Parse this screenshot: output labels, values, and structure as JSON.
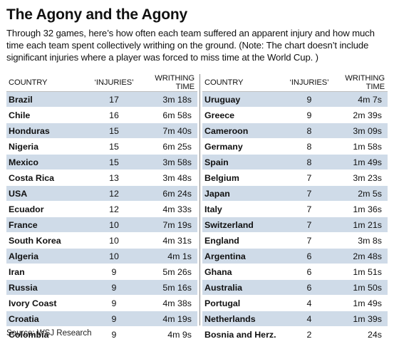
{
  "title": "The Agony and the Agony",
  "subtitle": "Through 32 games, here’s how often each team suffered an apparent injury and how much time each team spent collectively writhing on the ground. (Note: The chart doesn’t include significant injuries where a player was forced to miss time at the World Cup. )",
  "source": "Source: WSJ Research",
  "colors": {
    "shade": "#cfdbe8",
    "text": "#111111"
  },
  "chart_data": {
    "type": "table",
    "title": "The Agony and the Agony",
    "columns": [
      "COUNTRY",
      "‘INJURIES’",
      "WRITHING TIME"
    ],
    "rows": [
      {
        "country": "Brazil",
        "injuries": 17,
        "time": "3m 18s"
      },
      {
        "country": "Chile",
        "injuries": 16,
        "time": "6m 58s"
      },
      {
        "country": "Honduras",
        "injuries": 15,
        "time": "7m 40s"
      },
      {
        "country": "Nigeria",
        "injuries": 15,
        "time": "6m 25s"
      },
      {
        "country": "Mexico",
        "injuries": 15,
        "time": "3m 58s"
      },
      {
        "country": "Costa Rica",
        "injuries": 13,
        "time": "3m 48s"
      },
      {
        "country": "USA",
        "injuries": 12,
        "time": "6m 24s"
      },
      {
        "country": "Ecuador",
        "injuries": 12,
        "time": "4m 33s"
      },
      {
        "country": "France",
        "injuries": 10,
        "time": "7m 19s"
      },
      {
        "country": "South Korea",
        "injuries": 10,
        "time": "4m 31s"
      },
      {
        "country": "Algeria",
        "injuries": 10,
        "time": "4m 1s"
      },
      {
        "country": "Iran",
        "injuries": 9,
        "time": "5m 26s"
      },
      {
        "country": "Russia",
        "injuries": 9,
        "time": "5m 16s"
      },
      {
        "country": "Ivory Coast",
        "injuries": 9,
        "time": "4m 38s"
      },
      {
        "country": "Croatia",
        "injuries": 9,
        "time": "4m 19s"
      },
      {
        "country": "Colombia",
        "injuries": 9,
        "time": "4m 9s"
      },
      {
        "country": "Uruguay",
        "injuries": 9,
        "time": "4m 7s"
      },
      {
        "country": "Greece",
        "injuries": 9,
        "time": "2m 39s"
      },
      {
        "country": "Cameroon",
        "injuries": 8,
        "time": "3m 09s"
      },
      {
        "country": "Germany",
        "injuries": 8,
        "time": "1m 58s"
      },
      {
        "country": "Spain",
        "injuries": 8,
        "time": "1m 49s"
      },
      {
        "country": "Belgium",
        "injuries": 7,
        "time": "3m 23s"
      },
      {
        "country": "Japan",
        "injuries": 7,
        "time": "2m 5s"
      },
      {
        "country": "Italy",
        "injuries": 7,
        "time": "1m 36s"
      },
      {
        "country": "Switzerland",
        "injuries": 7,
        "time": "1m 21s"
      },
      {
        "country": "England",
        "injuries": 7,
        "time": "3m 8s"
      },
      {
        "country": "Argentina",
        "injuries": 6,
        "time": "2m 48s"
      },
      {
        "country": "Ghana",
        "injuries": 6,
        "time": "1m 51s"
      },
      {
        "country": "Australia",
        "injuries": 6,
        "time": "1m 50s"
      },
      {
        "country": "Portugal",
        "injuries": 4,
        "time": "1m 49s"
      },
      {
        "country": "Netherlands",
        "injuries": 4,
        "time": "1m 39s"
      },
      {
        "country": "Bosnia and Herz.",
        "injuries": 2,
        "time": "24s"
      }
    ]
  }
}
